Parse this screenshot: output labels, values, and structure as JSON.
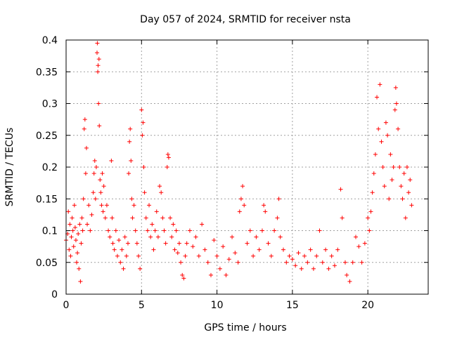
{
  "chart_data": {
    "type": "scatter",
    "title": "Day 057 of 2024, SRMTID for receiver nsta",
    "xlabel": "GPS time / hours",
    "ylabel": "SRMTID / TECUs",
    "xlim": [
      0,
      24
    ],
    "ylim": [
      0,
      0.4
    ],
    "xticks": [
      0,
      5,
      10,
      15,
      20
    ],
    "yticks": [
      0,
      0.05,
      0.1,
      0.15,
      0.2,
      0.25,
      0.3,
      0.35,
      0.4
    ],
    "xtick_labels": [
      "0",
      "5",
      "10",
      "15",
      "20"
    ],
    "ytick_labels": [
      "0",
      "0.05",
      "0.1",
      "0.15",
      "0.2",
      "0.25",
      "0.3",
      "0.35",
      "0.4"
    ],
    "grid": true,
    "marker": "+",
    "color": "#ff0000",
    "series": [
      {
        "name": "nsta",
        "points": [
          [
            0.0,
            0.085
          ],
          [
            0.1,
            0.095
          ],
          [
            0.15,
            0.13
          ],
          [
            0.2,
            0.07
          ],
          [
            0.25,
            0.11
          ],
          [
            0.3,
            0.06
          ],
          [
            0.35,
            0.09
          ],
          [
            0.4,
            0.12
          ],
          [
            0.45,
            0.1
          ],
          [
            0.5,
            0.075
          ],
          [
            0.55,
            0.14
          ],
          [
            0.6,
            0.105
          ],
          [
            0.65,
            0.085
          ],
          [
            0.7,
            0.05
          ],
          [
            0.75,
            0.065
          ],
          [
            0.8,
            0.095
          ],
          [
            0.85,
            0.04
          ],
          [
            0.9,
            0.11
          ],
          [
            0.95,
            0.02
          ],
          [
            1.0,
            0.08
          ],
          [
            1.05,
            0.12
          ],
          [
            1.1,
            0.1
          ],
          [
            1.15,
            0.15
          ],
          [
            1.2,
            0.26
          ],
          [
            1.25,
            0.275
          ],
          [
            1.3,
            0.19
          ],
          [
            1.35,
            0.23
          ],
          [
            1.4,
            0.11
          ],
          [
            1.5,
            0.14
          ],
          [
            1.6,
            0.1
          ],
          [
            1.7,
            0.125
          ],
          [
            1.8,
            0.16
          ],
          [
            1.85,
            0.19
          ],
          [
            1.9,
            0.21
          ],
          [
            1.95,
            0.15
          ],
          [
            2.0,
            0.2
          ],
          [
            2.05,
            0.38
          ],
          [
            2.07,
            0.395
          ],
          [
            2.1,
            0.35
          ],
          [
            2.12,
            0.36
          ],
          [
            2.15,
            0.3
          ],
          [
            2.18,
            0.37
          ],
          [
            2.2,
            0.265
          ],
          [
            2.25,
            0.18
          ],
          [
            2.3,
            0.16
          ],
          [
            2.35,
            0.14
          ],
          [
            2.4,
            0.19
          ],
          [
            2.45,
            0.13
          ],
          [
            2.5,
            0.17
          ],
          [
            2.6,
            0.12
          ],
          [
            2.7,
            0.14
          ],
          [
            2.8,
            0.1
          ],
          [
            2.9,
            0.09
          ],
          [
            3.0,
            0.21
          ],
          [
            3.05,
            0.12
          ],
          [
            3.1,
            0.08
          ],
          [
            3.2,
            0.07
          ],
          [
            3.3,
            0.1
          ],
          [
            3.4,
            0.06
          ],
          [
            3.5,
            0.085
          ],
          [
            3.6,
            0.05
          ],
          [
            3.7,
            0.07
          ],
          [
            3.8,
            0.04
          ],
          [
            3.9,
            0.09
          ],
          [
            4.0,
            0.06
          ],
          [
            4.1,
            0.08
          ],
          [
            4.15,
            0.19
          ],
          [
            4.2,
            0.24
          ],
          [
            4.25,
            0.26
          ],
          [
            4.3,
            0.21
          ],
          [
            4.35,
            0.15
          ],
          [
            4.4,
            0.12
          ],
          [
            4.5,
            0.14
          ],
          [
            4.6,
            0.1
          ],
          [
            4.7,
            0.08
          ],
          [
            4.8,
            0.06
          ],
          [
            4.9,
            0.04
          ],
          [
            5.0,
            0.29
          ],
          [
            5.05,
            0.25
          ],
          [
            5.1,
            0.27
          ],
          [
            5.15,
            0.2
          ],
          [
            5.2,
            0.16
          ],
          [
            5.3,
            0.12
          ],
          [
            5.4,
            0.1
          ],
          [
            5.5,
            0.14
          ],
          [
            5.6,
            0.09
          ],
          [
            5.7,
            0.11
          ],
          [
            5.8,
            0.07
          ],
          [
            5.9,
            0.1
          ],
          [
            6.0,
            0.13
          ],
          [
            6.1,
            0.09
          ],
          [
            6.2,
            0.17
          ],
          [
            6.3,
            0.16
          ],
          [
            6.4,
            0.12
          ],
          [
            6.5,
            0.1
          ],
          [
            6.6,
            0.08
          ],
          [
            6.7,
            0.2
          ],
          [
            6.75,
            0.22
          ],
          [
            6.8,
            0.215
          ],
          [
            6.9,
            0.12
          ],
          [
            7.0,
            0.09
          ],
          [
            7.1,
            0.11
          ],
          [
            7.2,
            0.07
          ],
          [
            7.3,
            0.1
          ],
          [
            7.4,
            0.065
          ],
          [
            7.5,
            0.08
          ],
          [
            7.6,
            0.05
          ],
          [
            7.7,
            0.03
          ],
          [
            7.8,
            0.025
          ],
          [
            7.9,
            0.06
          ],
          [
            8.0,
            0.08
          ],
          [
            8.2,
            0.1
          ],
          [
            8.4,
            0.075
          ],
          [
            8.6,
            0.09
          ],
          [
            8.8,
            0.06
          ],
          [
            9.0,
            0.11
          ],
          [
            9.2,
            0.07
          ],
          [
            9.4,
            0.05
          ],
          [
            9.6,
            0.03
          ],
          [
            9.8,
            0.085
          ],
          [
            10.0,
            0.06
          ],
          [
            10.2,
            0.04
          ],
          [
            10.4,
            0.075
          ],
          [
            10.6,
            0.03
          ],
          [
            10.8,
            0.055
          ],
          [
            11.0,
            0.09
          ],
          [
            11.2,
            0.065
          ],
          [
            11.4,
            0.05
          ],
          [
            11.5,
            0.13
          ],
          [
            11.6,
            0.15
          ],
          [
            11.7,
            0.17
          ],
          [
            11.8,
            0.14
          ],
          [
            12.0,
            0.08
          ],
          [
            12.2,
            0.1
          ],
          [
            12.4,
            0.06
          ],
          [
            12.6,
            0.09
          ],
          [
            12.8,
            0.07
          ],
          [
            13.0,
            0.1
          ],
          [
            13.1,
            0.14
          ],
          [
            13.2,
            0.13
          ],
          [
            13.4,
            0.08
          ],
          [
            13.6,
            0.06
          ],
          [
            13.8,
            0.1
          ],
          [
            14.0,
            0.12
          ],
          [
            14.1,
            0.15
          ],
          [
            14.2,
            0.09
          ],
          [
            14.4,
            0.07
          ],
          [
            14.6,
            0.05
          ],
          [
            14.8,
            0.06
          ],
          [
            15.0,
            0.055
          ],
          [
            15.2,
            0.045
          ],
          [
            15.4,
            0.065
          ],
          [
            15.6,
            0.04
          ],
          [
            15.8,
            0.06
          ],
          [
            16.0,
            0.05
          ],
          [
            16.2,
            0.07
          ],
          [
            16.4,
            0.04
          ],
          [
            16.6,
            0.06
          ],
          [
            16.8,
            0.1
          ],
          [
            17.0,
            0.05
          ],
          [
            17.2,
            0.07
          ],
          [
            17.4,
            0.04
          ],
          [
            17.6,
            0.06
          ],
          [
            17.8,
            0.045
          ],
          [
            18.0,
            0.07
          ],
          [
            18.2,
            0.165
          ],
          [
            18.3,
            0.12
          ],
          [
            18.5,
            0.05
          ],
          [
            18.6,
            0.03
          ],
          [
            18.8,
            0.02
          ],
          [
            19.0,
            0.05
          ],
          [
            19.2,
            0.09
          ],
          [
            19.4,
            0.075
          ],
          [
            19.6,
            0.05
          ],
          [
            19.8,
            0.08
          ],
          [
            20.0,
            0.12
          ],
          [
            20.1,
            0.1
          ],
          [
            20.2,
            0.13
          ],
          [
            20.3,
            0.16
          ],
          [
            20.4,
            0.19
          ],
          [
            20.5,
            0.22
          ],
          [
            20.6,
            0.31
          ],
          [
            20.7,
            0.26
          ],
          [
            20.8,
            0.33
          ],
          [
            20.9,
            0.24
          ],
          [
            21.0,
            0.2
          ],
          [
            21.1,
            0.17
          ],
          [
            21.2,
            0.27
          ],
          [
            21.3,
            0.25
          ],
          [
            21.4,
            0.15
          ],
          [
            21.5,
            0.22
          ],
          [
            21.6,
            0.18
          ],
          [
            21.7,
            0.2
          ],
          [
            21.8,
            0.29
          ],
          [
            21.85,
            0.325
          ],
          [
            21.9,
            0.3
          ],
          [
            22.0,
            0.26
          ],
          [
            22.1,
            0.2
          ],
          [
            22.2,
            0.17
          ],
          [
            22.3,
            0.15
          ],
          [
            22.4,
            0.19
          ],
          [
            22.5,
            0.12
          ],
          [
            22.6,
            0.2
          ],
          [
            22.7,
            0.16
          ],
          [
            22.8,
            0.18
          ],
          [
            22.9,
            0.14
          ]
        ]
      }
    ]
  }
}
